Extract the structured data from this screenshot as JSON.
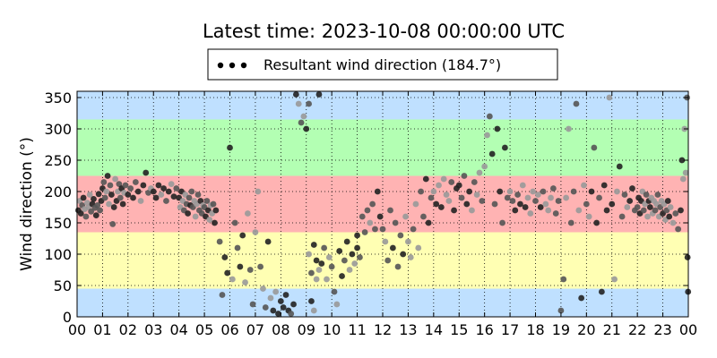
{
  "chart_data": {
    "type": "scatter",
    "title": "Latest time: 2023-10-08 00:00:00 UTC",
    "ylabel": "Wind direction (°)",
    "xlabel": "",
    "xlim": [
      0,
      24
    ],
    "ylim": [
      0,
      360
    ],
    "x_ticks": [
      "00",
      "01",
      "02",
      "03",
      "04",
      "05",
      "06",
      "07",
      "08",
      "09",
      "10",
      "11",
      "12",
      "13",
      "14",
      "15",
      "16",
      "17",
      "18",
      "19",
      "20",
      "21",
      "22",
      "23",
      "00"
    ],
    "y_ticks": [
      0,
      50,
      100,
      150,
      200,
      250,
      300,
      350
    ],
    "grid": true,
    "legend": {
      "position": "top-center",
      "entries": [
        {
          "label": "Resultant wind direction (184.7°)"
        }
      ]
    },
    "direction_bands": [
      {
        "from": 0,
        "to": 45,
        "color": "#bfe0ff"
      },
      {
        "from": 45,
        "to": 135,
        "color": "#ffffb3"
      },
      {
        "from": 135,
        "to": 225,
        "color": "#ffb3b3"
      },
      {
        "from": 225,
        "to": 315,
        "color": "#b3ffb3"
      },
      {
        "from": 315,
        "to": 360,
        "color": "#bfe0ff"
      }
    ],
    "series": [
      {
        "points": [
          [
            0.05,
            170
          ],
          [
            0.1,
            185
          ],
          [
            0.15,
            165
          ],
          [
            0.2,
            178
          ],
          [
            0.25,
            190
          ],
          [
            0.3,
            172
          ],
          [
            0.35,
            160
          ],
          [
            0.4,
            182
          ],
          [
            0.45,
            175
          ],
          [
            0.5,
            195
          ],
          [
            0.55,
            168
          ],
          [
            0.6,
            180
          ],
          [
            0.65,
            188
          ],
          [
            0.7,
            174
          ],
          [
            0.75,
            162
          ],
          [
            0.8,
            178
          ],
          [
            0.85,
            196
          ],
          [
            0.9,
            170
          ],
          [
            0.95,
            185
          ],
          [
            1.0,
            205
          ],
          [
            1.05,
            215
          ],
          [
            1.1,
            190
          ],
          [
            1.15,
            200
          ],
          [
            1.2,
            225
          ],
          [
            1.25,
            180
          ],
          [
            1.3,
            210
          ],
          [
            1.35,
            195
          ],
          [
            1.4,
            148
          ],
          [
            1.45,
            175
          ],
          [
            1.5,
            220
          ],
          [
            1.55,
            185
          ],
          [
            1.6,
            200
          ],
          [
            1.65,
            212
          ],
          [
            1.7,
            190
          ],
          [
            1.75,
            205
          ],
          [
            1.8,
            180
          ],
          [
            1.85,
            198
          ],
          [
            1.9,
            210
          ],
          [
            2.0,
            195
          ],
          [
            2.1,
            205
          ],
          [
            2.2,
            190
          ],
          [
            2.3,
            215
          ],
          [
            2.4,
            200
          ],
          [
            2.5,
            185
          ],
          [
            2.6,
            210
          ],
          [
            2.7,
            230
          ],
          [
            2.8,
            198
          ],
          [
            2.9,
            205
          ],
          [
            3.0,
            200
          ],
          [
            3.1,
            190
          ],
          [
            3.2,
            210
          ],
          [
            3.3,
            195
          ],
          [
            3.4,
            205
          ],
          [
            3.5,
            185
          ],
          [
            3.6,
            200
          ],
          [
            3.7,
            212
          ],
          [
            3.8,
            192
          ],
          [
            3.9,
            205
          ],
          [
            4.0,
            190
          ],
          [
            4.05,
            175
          ],
          [
            4.1,
            200
          ],
          [
            4.15,
            185
          ],
          [
            4.2,
            170
          ],
          [
            4.25,
            195
          ],
          [
            4.3,
            180
          ],
          [
            4.35,
            165
          ],
          [
            4.4,
            190
          ],
          [
            4.45,
            178
          ],
          [
            4.5,
            200
          ],
          [
            4.55,
            175
          ],
          [
            4.6,
            185
          ],
          [
            4.65,
            160
          ],
          [
            4.7,
            180
          ],
          [
            4.75,
            195
          ],
          [
            4.8,
            170
          ],
          [
            4.85,
            185
          ],
          [
            4.9,
            165
          ],
          [
            4.95,
            178
          ],
          [
            5.0,
            175
          ],
          [
            5.05,
            160
          ],
          [
            5.1,
            185
          ],
          [
            5.15,
            170
          ],
          [
            5.2,
            155
          ],
          [
            5.25,
            178
          ],
          [
            5.3,
            165
          ],
          [
            5.35,
            180
          ],
          [
            5.4,
            150
          ],
          [
            5.45,
            170
          ],
          [
            5.6,
            120
          ],
          [
            5.7,
            35
          ],
          [
            5.8,
            95
          ],
          [
            5.9,
            70
          ],
          [
            6.0,
            270
          ],
          [
            6.1,
            60
          ],
          [
            6.2,
            150
          ],
          [
            6.3,
            110
          ],
          [
            6.4,
            80
          ],
          [
            6.5,
            130
          ],
          [
            6.6,
            55
          ],
          [
            6.7,
            165
          ],
          [
            6.8,
            75
          ],
          [
            6.9,
            20
          ],
          [
            7.0,
            135
          ],
          [
            7.1,
            200
          ],
          [
            7.2,
            80
          ],
          [
            7.3,
            45
          ],
          [
            7.4,
            15
          ],
          [
            7.5,
            120
          ],
          [
            7.6,
            30
          ],
          [
            7.7,
            10
          ],
          [
            7.8,
            40
          ],
          [
            7.9,
            5
          ],
          [
            8.0,
            25
          ],
          [
            8.1,
            15
          ],
          [
            8.2,
            35
          ],
          [
            8.3,
            10
          ],
          [
            8.4,
            5
          ],
          [
            8.5,
            20
          ],
          [
            8.6,
            355
          ],
          [
            8.7,
            340
          ],
          [
            8.8,
            310
          ],
          [
            8.9,
            320
          ],
          [
            9.0,
            300
          ],
          [
            9.1,
            340
          ],
          [
            9.2,
            25
          ],
          [
            9.3,
            10
          ],
          [
            9.4,
            60
          ],
          [
            9.5,
            355
          ],
          [
            9.1,
            100
          ],
          [
            9.2,
            70
          ],
          [
            9.3,
            115
          ],
          [
            9.4,
            90
          ],
          [
            9.5,
            75
          ],
          [
            9.6,
            85
          ],
          [
            9.7,
            110
          ],
          [
            9.8,
            60
          ],
          [
            9.9,
            95
          ],
          [
            10.0,
            80
          ],
          [
            10.1,
            40
          ],
          [
            10.2,
            20
          ],
          [
            10.3,
            105
          ],
          [
            10.4,
            65
          ],
          [
            10.5,
            90
          ],
          [
            10.6,
            120
          ],
          [
            10.7,
            75
          ],
          [
            10.8,
            100
          ],
          [
            10.9,
            85
          ],
          [
            11.0,
            110
          ],
          [
            11.0,
            130
          ],
          [
            11.1,
            95
          ],
          [
            11.2,
            160
          ],
          [
            11.3,
            135
          ],
          [
            11.4,
            170
          ],
          [
            11.5,
            150
          ],
          [
            11.6,
            180
          ],
          [
            11.7,
            140
          ],
          [
            11.8,
            200
          ],
          [
            11.9,
            160
          ],
          [
            12.0,
            140
          ],
          [
            12.1,
            120
          ],
          [
            12.2,
            90
          ],
          [
            12.3,
            170
          ],
          [
            12.4,
            110
          ],
          [
            12.5,
            150
          ],
          [
            12.6,
            80
          ],
          [
            12.7,
            130
          ],
          [
            12.8,
            100
          ],
          [
            12.9,
            160
          ],
          [
            13.0,
            120
          ],
          [
            13.1,
            95
          ],
          [
            13.2,
            140
          ],
          [
            13.3,
            180
          ],
          [
            13.4,
            110
          ],
          [
            13.5,
            200
          ],
          [
            13.6,
            160
          ],
          [
            13.7,
            220
          ],
          [
            13.8,
            150
          ],
          [
            13.9,
            190
          ],
          [
            14.0,
            200
          ],
          [
            14.1,
            180
          ],
          [
            14.2,
            210
          ],
          [
            14.3,
            175
          ],
          [
            14.4,
            220
          ],
          [
            14.5,
            195
          ],
          [
            14.6,
            185
          ],
          [
            14.7,
            215
          ],
          [
            14.8,
            170
          ],
          [
            14.9,
            205
          ],
          [
            15.0,
            210
          ],
          [
            15.1,
            190
          ],
          [
            15.2,
            225
          ],
          [
            15.3,
            180
          ],
          [
            15.4,
            200
          ],
          [
            15.5,
            170
          ],
          [
            15.6,
            215
          ],
          [
            15.7,
            195
          ],
          [
            15.8,
            230
          ],
          [
            15.9,
            185
          ],
          [
            16.0,
            240
          ],
          [
            16.1,
            290
          ],
          [
            16.2,
            320
          ],
          [
            16.3,
            260
          ],
          [
            16.4,
            180
          ],
          [
            16.5,
            300
          ],
          [
            16.6,
            200
          ],
          [
            16.7,
            150
          ],
          [
            16.8,
            270
          ],
          [
            16.9,
            190
          ],
          [
            17.0,
            200
          ],
          [
            17.1,
            185
          ],
          [
            17.2,
            170
          ],
          [
            17.3,
            195
          ],
          [
            17.4,
            180
          ],
          [
            17.5,
            210
          ],
          [
            17.6,
            175
          ],
          [
            17.7,
            190
          ],
          [
            17.8,
            165
          ],
          [
            17.9,
            200
          ],
          [
            18.0,
            185
          ],
          [
            18.1,
            195
          ],
          [
            18.2,
            175
          ],
          [
            18.3,
            200
          ],
          [
            18.4,
            180
          ],
          [
            18.5,
            170
          ],
          [
            18.6,
            190
          ],
          [
            18.7,
            205
          ],
          [
            18.8,
            165
          ],
          [
            18.9,
            185
          ],
          [
            19.0,
            10
          ],
          [
            19.1,
            60
          ],
          [
            19.2,
            190
          ],
          [
            19.3,
            300
          ],
          [
            19.4,
            150
          ],
          [
            19.5,
            200
          ],
          [
            19.6,
            340
          ],
          [
            19.7,
            170
          ],
          [
            19.8,
            30
          ],
          [
            19.9,
            210
          ],
          [
            20.0,
            180
          ],
          [
            20.1,
            160
          ],
          [
            20.2,
            200
          ],
          [
            20.3,
            270
          ],
          [
            20.4,
            150
          ],
          [
            20.5,
            190
          ],
          [
            20.6,
            40
          ],
          [
            20.7,
            210
          ],
          [
            20.8,
            170
          ],
          [
            20.9,
            350
          ],
          [
            21.0,
            180
          ],
          [
            21.1,
            60
          ],
          [
            21.2,
            200
          ],
          [
            21.3,
            240
          ],
          [
            21.4,
            160
          ],
          [
            21.5,
            195
          ],
          [
            21.6,
            175
          ],
          [
            21.7,
            185
          ],
          [
            21.8,
            205
          ],
          [
            21.9,
            170
          ],
          [
            22.0,
            175
          ],
          [
            22.05,
            190
          ],
          [
            22.1,
            165
          ],
          [
            22.15,
            185
          ],
          [
            22.2,
            200
          ],
          [
            22.25,
            170
          ],
          [
            22.3,
            180
          ],
          [
            22.35,
            195
          ],
          [
            22.4,
            160
          ],
          [
            22.45,
            185
          ],
          [
            22.5,
            175
          ],
          [
            22.55,
            190
          ],
          [
            22.6,
            165
          ],
          [
            22.65,
            185
          ],
          [
            22.7,
            170
          ],
          [
            22.75,
            180
          ],
          [
            22.8,
            195
          ],
          [
            22.85,
            160
          ],
          [
            22.9,
            175
          ],
          [
            22.95,
            185
          ],
          [
            23.0,
            165
          ],
          [
            23.05,
            180
          ],
          [
            23.1,
            155
          ],
          [
            23.15,
            170
          ],
          [
            23.2,
            185
          ],
          [
            23.25,
            160
          ],
          [
            23.3,
            175
          ],
          [
            23.4,
            150
          ],
          [
            23.5,
            165
          ],
          [
            23.6,
            140
          ],
          [
            23.7,
            170
          ],
          [
            23.75,
            250
          ],
          [
            23.8,
            220
          ],
          [
            23.85,
            300
          ],
          [
            23.9,
            230
          ],
          [
            23.95,
            350
          ],
          [
            23.97,
            95
          ],
          [
            23.99,
            40
          ]
        ]
      }
    ],
    "colors": {
      "grid": "#000000",
      "frame": "#000000",
      "point_dark": "#222222",
      "point_mid": "#555555",
      "point_light": "#999999"
    }
  }
}
